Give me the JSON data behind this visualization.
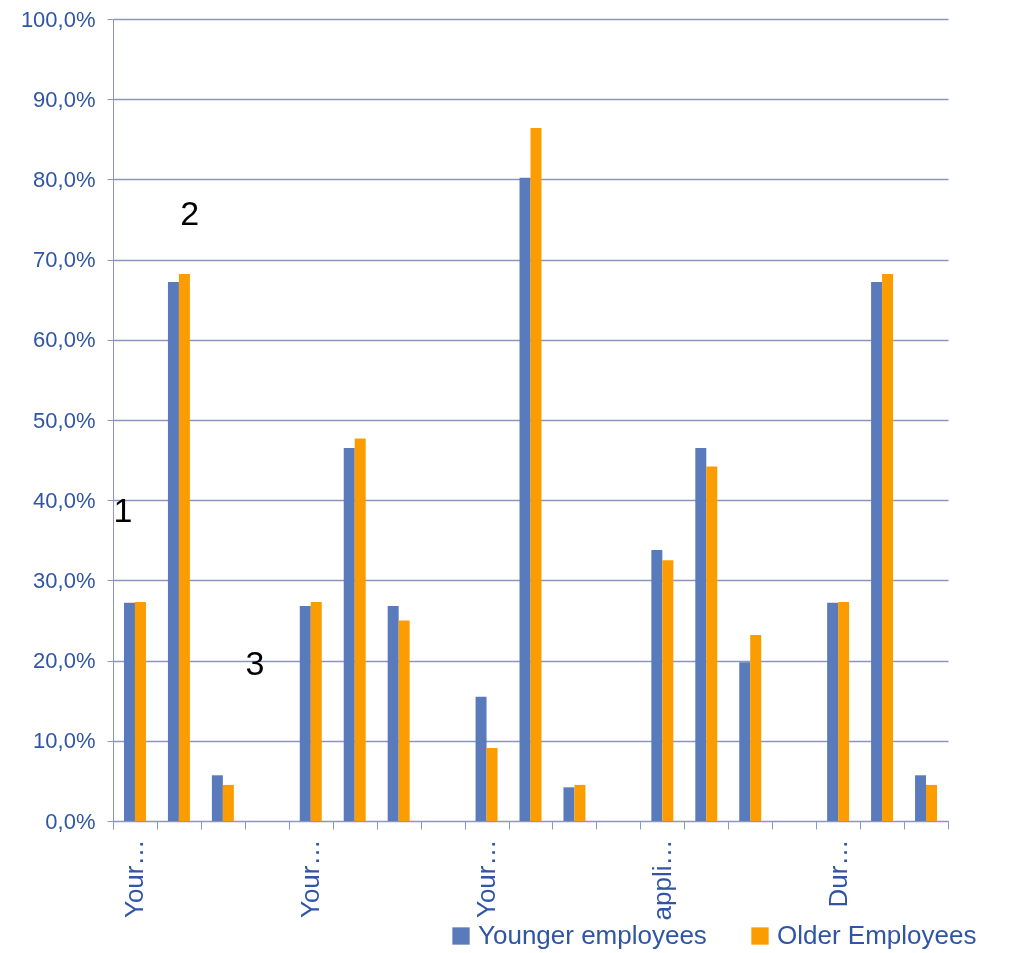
{
  "chart_data": {
    "type": "bar",
    "categories": [
      "Your…",
      null,
      null,
      null,
      "Your…",
      null,
      null,
      null,
      "Your…",
      null,
      null,
      null,
      "appli…",
      null,
      null,
      null,
      "Dur…",
      null,
      null
    ],
    "series": [
      {
        "name": "Younger employees",
        "color": "#5a7bbb",
        "values": [
          27.2,
          67.2,
          5.7,
          null,
          26.8,
          46.5,
          26.8,
          null,
          15.5,
          80.2,
          4.2,
          null,
          33.8,
          46.5,
          19.8,
          null,
          27.2,
          67.2,
          5.7
        ]
      },
      {
        "name": "Older Employees",
        "color": "#fb9c00",
        "values": [
          27.3,
          68.2,
          4.5,
          null,
          27.3,
          47.7,
          25.0,
          null,
          9.1,
          86.4,
          4.5,
          null,
          32.5,
          44.2,
          23.2,
          null,
          27.3,
          68.2,
          4.5
        ]
      }
    ],
    "ylim": [
      0,
      100
    ],
    "yticks": [
      {
        "value": 0,
        "label": "0,0%"
      },
      {
        "value": 10,
        "label": "10,0%"
      },
      {
        "value": 20,
        "label": "20,0%"
      },
      {
        "value": 30,
        "label": "30,0%"
      },
      {
        "value": 40,
        "label": "40,0%"
      },
      {
        "value": 50,
        "label": "50,0%"
      },
      {
        "value": 60,
        "label": "60,0%"
      },
      {
        "value": 70,
        "label": "70,0%"
      },
      {
        "value": 80,
        "label": "80,0%"
      },
      {
        "value": 90,
        "label": "90,0%"
      },
      {
        "value": 100,
        "label": "100,0%"
      }
    ],
    "grid": "y",
    "legend": "bottom right",
    "annotations": [
      "1",
      "2",
      "3"
    ]
  }
}
